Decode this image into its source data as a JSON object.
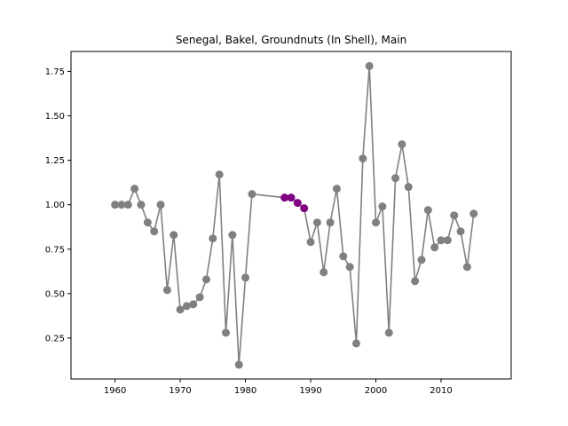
{
  "chart_data": {
    "type": "line",
    "title": "Senegal, Bakel, Groundnuts (In Shell), Main",
    "xlabel": "",
    "ylabel": "",
    "xlim": [
      1953.25,
      2020.75
    ],
    "ylim": [
      0.02,
      1.862
    ],
    "xticks": [
      1960,
      1970,
      1980,
      1990,
      2000,
      2010
    ],
    "yticks": [
      0.25,
      0.5,
      0.75,
      1.0,
      1.25,
      1.5,
      1.75
    ],
    "ytick_labels": [
      "0.25",
      "0.50",
      "0.75",
      "1.00",
      "1.25",
      "1.50",
      "1.75"
    ],
    "grid": false,
    "line_color": "#808080",
    "marker_color": "#808080",
    "highlight_color": "#800080",
    "highlight_years": [
      1986,
      1987,
      1988,
      1989
    ],
    "series": [
      {
        "x": [
          1960,
          1961,
          1962,
          1963,
          1964,
          1965,
          1966,
          1967,
          1968,
          1969,
          1970,
          1971,
          1972,
          1973,
          1974,
          1975,
          1976,
          1977,
          1978,
          1979,
          1980,
          1981,
          1986,
          1987,
          1988,
          1989,
          1990,
          1991,
          1992,
          1993,
          1994,
          1995,
          1996,
          1997,
          1998,
          1999,
          2000,
          2001,
          2002,
          2003,
          2004,
          2005,
          2006,
          2007,
          2008,
          2009,
          2010,
          2011,
          2012,
          2013,
          2014,
          2015
        ],
        "y": [
          1.0,
          1.0,
          1.0,
          1.09,
          1.0,
          0.9,
          0.85,
          1.0,
          0.52,
          0.83,
          0.41,
          0.43,
          0.44,
          0.48,
          0.58,
          0.81,
          1.17,
          0.28,
          0.83,
          0.1,
          0.59,
          1.06,
          1.04,
          1.04,
          1.01,
          0.98,
          0.79,
          0.9,
          0.62,
          0.9,
          1.09,
          0.71,
          0.65,
          0.22,
          1.26,
          1.78,
          0.9,
          0.99,
          0.28,
          1.15,
          1.34,
          1.1,
          0.57,
          0.69,
          0.97,
          0.76,
          0.8,
          0.8,
          0.94,
          0.85,
          0.65,
          0.95
        ]
      }
    ]
  }
}
